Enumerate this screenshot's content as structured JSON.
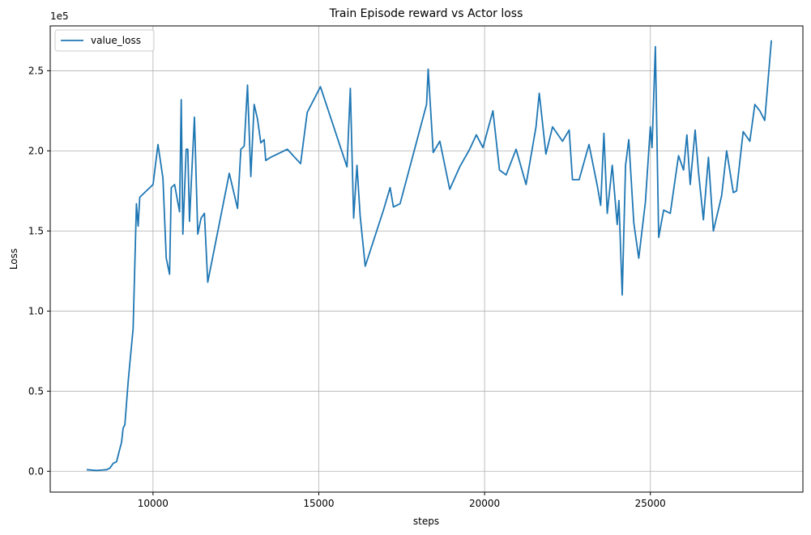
{
  "chart_data": {
    "type": "line",
    "title": "Train Episode reward vs Actor loss",
    "xlabel": "steps",
    "ylabel": "Loss",
    "y_scale_label": "1e5",
    "xlim": [
      6900,
      29600
    ],
    "ylim": [
      -0.13,
      2.78
    ],
    "xticks": [
      10000,
      15000,
      20000,
      25000
    ],
    "xtick_labels": [
      "10000",
      "15000",
      "20000",
      "25000"
    ],
    "yticks": [
      0.0,
      0.5,
      1.0,
      1.5,
      2.0,
      2.5
    ],
    "ytick_labels": [
      "0.0",
      "0.5",
      "1.0",
      "1.5",
      "2.0",
      "2.5"
    ],
    "grid": true,
    "legend_position": "upper-left",
    "series": [
      {
        "name": "value_loss",
        "color": "#1f77b4",
        "x": [
          8000,
          8300,
          8600,
          8700,
          8800,
          8900,
          9000,
          9050,
          9100,
          9150,
          9200,
          9250,
          9300,
          9400,
          9500,
          9550,
          9600,
          9650,
          10000,
          10150,
          10300,
          10400,
          10500,
          10550,
          10650,
          10800,
          10850,
          10900,
          11000,
          11050,
          11100,
          11150,
          11250,
          11350,
          11450,
          11550,
          11650,
          12300,
          12550,
          12650,
          12750,
          12850,
          12950,
          13050,
          13150,
          13250,
          13350,
          13400,
          13550,
          14050,
          14450,
          14650,
          15050,
          15850,
          15950,
          16050,
          16150,
          16250,
          16400,
          16950,
          17150,
          17250,
          17450,
          18250,
          18300,
          18450,
          18650,
          18950,
          19250,
          19550,
          19750,
          19950,
          20250,
          20450,
          20650,
          20950,
          21250,
          21550,
          21650,
          21850,
          22050,
          22350,
          22550,
          22650,
          22850,
          23150,
          23400,
          23500,
          23600,
          23700,
          23850,
          24000,
          24050,
          24150,
          24250,
          24350,
          24500,
          24650,
          24850,
          25000,
          25050,
          25150,
          25250,
          25400,
          25600,
          25850,
          26000,
          26100,
          26200,
          26350,
          26450,
          26600,
          26750,
          26900,
          27150,
          27300,
          27500,
          27600,
          27800,
          28000,
          28150,
          28300,
          28450,
          28650
        ],
        "y": [
          0.01,
          0.005,
          0.01,
          0.02,
          0.05,
          0.06,
          0.14,
          0.18,
          0.27,
          0.29,
          0.42,
          0.56,
          0.67,
          0.89,
          1.67,
          1.53,
          1.71,
          1.72,
          1.79,
          2.04,
          1.83,
          1.33,
          1.23,
          1.77,
          1.79,
          1.62,
          2.32,
          1.48,
          2.01,
          2.01,
          1.56,
          1.78,
          2.21,
          1.48,
          1.58,
          1.61,
          1.18,
          1.86,
          1.64,
          2.01,
          2.03,
          2.41,
          1.84,
          2.29,
          2.2,
          2.05,
          2.07,
          1.94,
          1.96,
          2.01,
          1.92,
          2.24,
          2.4,
          1.9,
          2.39,
          1.58,
          1.91,
          1.59,
          1.28,
          1.63,
          1.77,
          1.65,
          1.67,
          2.29,
          2.51,
          1.99,
          2.06,
          1.76,
          1.9,
          2.01,
          2.1,
          2.02,
          2.25,
          1.88,
          1.85,
          2.01,
          1.79,
          2.15,
          2.36,
          1.98,
          2.15,
          2.06,
          2.13,
          1.82,
          1.82,
          2.04,
          1.78,
          1.66,
          2.11,
          1.61,
          1.91,
          1.54,
          1.69,
          1.1,
          1.91,
          2.07,
          1.55,
          1.33,
          1.68,
          2.15,
          2.02,
          2.65,
          1.46,
          1.63,
          1.61,
          1.97,
          1.88,
          2.1,
          1.79,
          2.13,
          1.87,
          1.57,
          1.96,
          1.5,
          1.72,
          2.0,
          1.74,
          1.75,
          2.12,
          2.06,
          2.29,
          2.25,
          2.19,
          2.69
        ]
      }
    ]
  }
}
